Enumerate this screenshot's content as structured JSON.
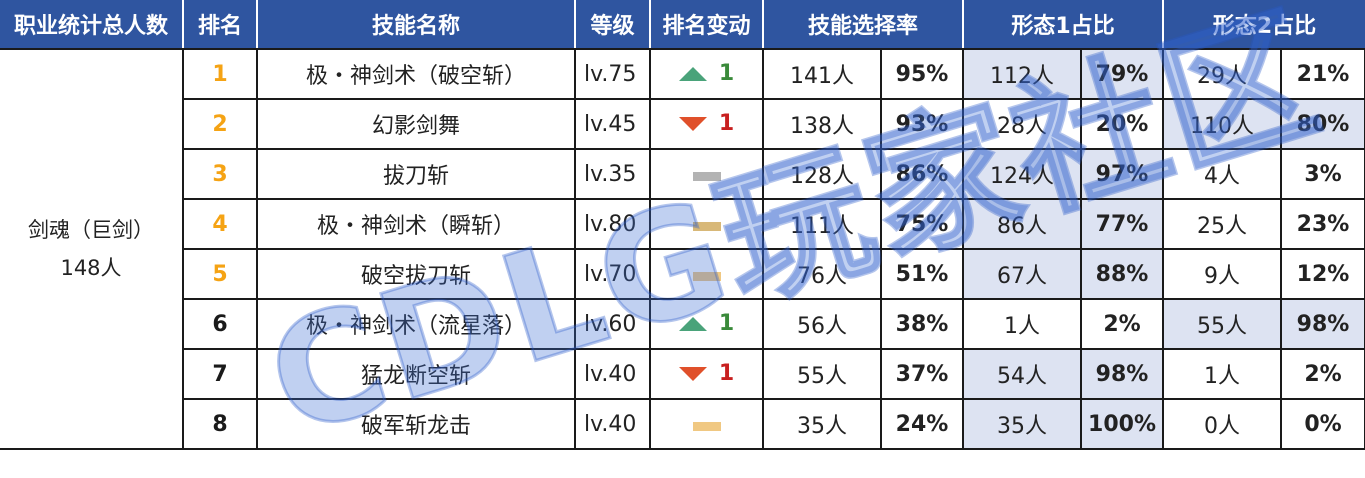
{
  "headers": {
    "class_total": "职业统计总人数",
    "rank": "排名",
    "skill": "技能名称",
    "level": "等级",
    "rank_change": "排名变动",
    "select_rate": "技能选择率",
    "form1": "形态1占比",
    "form2": "形态2占比"
  },
  "class_cell": {
    "name": "剑魂（巨剑）",
    "total": "148人"
  },
  "colors": {
    "header_bg": "#2f55a0",
    "highlight": "#dde3f2",
    "rank_orange": "#f5a314",
    "up": "#4aa37a",
    "down": "#e0502a",
    "bar_gray": "#b3b3b3",
    "bar_yellow": "#f0c882"
  },
  "rows": [
    {
      "rank": "1",
      "skill": "极・神剑术（破空斩）",
      "level": "lv.75",
      "change": {
        "icon": "triangle-up-icon",
        "value": "1"
      },
      "select_count": "141人",
      "select_pct": "95%",
      "f1_count": "112人",
      "f1_pct": "79%",
      "f2_count": "29人",
      "f2_pct": "21%"
    },
    {
      "rank": "2",
      "skill": "幻影剑舞",
      "level": "lv.45",
      "change": {
        "icon": "triangle-down-icon",
        "value": "1"
      },
      "select_count": "138人",
      "select_pct": "93%",
      "f1_count": "28人",
      "f1_pct": "20%",
      "f2_count": "110人",
      "f2_pct": "80%"
    },
    {
      "rank": "3",
      "skill": "拔刀斩",
      "level": "lv.35",
      "change": {
        "icon": "no-change-bar-icon",
        "value": ""
      },
      "select_count": "128人",
      "select_pct": "86%",
      "f1_count": "124人",
      "f1_pct": "97%",
      "f2_count": "4人",
      "f2_pct": "3%"
    },
    {
      "rank": "4",
      "skill": "极・神剑术（瞬斩）",
      "level": "lv.80",
      "change": {
        "icon": "no-change-bar-icon",
        "value": ""
      },
      "select_count": "111人",
      "select_pct": "75%",
      "f1_count": "86人",
      "f1_pct": "77%",
      "f2_count": "25人",
      "f2_pct": "23%"
    },
    {
      "rank": "5",
      "skill": "破空拔刀斩",
      "level": "lv.70",
      "change": {
        "icon": "no-change-bar-icon",
        "value": ""
      },
      "select_count": "76人",
      "select_pct": "51%",
      "f1_count": "67人",
      "f1_pct": "88%",
      "f2_count": "9人",
      "f2_pct": "12%"
    },
    {
      "rank": "6",
      "skill": "极・神剑术（流星落）",
      "level": "lv.60",
      "change": {
        "icon": "triangle-up-icon",
        "value": "1"
      },
      "select_count": "56人",
      "select_pct": "38%",
      "f1_count": "1人",
      "f1_pct": "2%",
      "f2_count": "55人",
      "f2_pct": "98%"
    },
    {
      "rank": "7",
      "skill": "猛龙断空斩",
      "level": "lv.40",
      "change": {
        "icon": "triangle-down-icon",
        "value": "1"
      },
      "select_count": "55人",
      "select_pct": "37%",
      "f1_count": "54人",
      "f1_pct": "98%",
      "f2_count": "1人",
      "f2_pct": "2%"
    },
    {
      "rank": "8",
      "skill": "破军斩龙击",
      "level": "lv.40",
      "change": {
        "icon": "no-change-bar-icon",
        "value": ""
      },
      "select_count": "35人",
      "select_pct": "24%",
      "f1_count": "35人",
      "f1_pct": "100%",
      "f2_count": "0人",
      "f2_pct": "0%"
    }
  ],
  "watermark": "CDLG玩家社区"
}
